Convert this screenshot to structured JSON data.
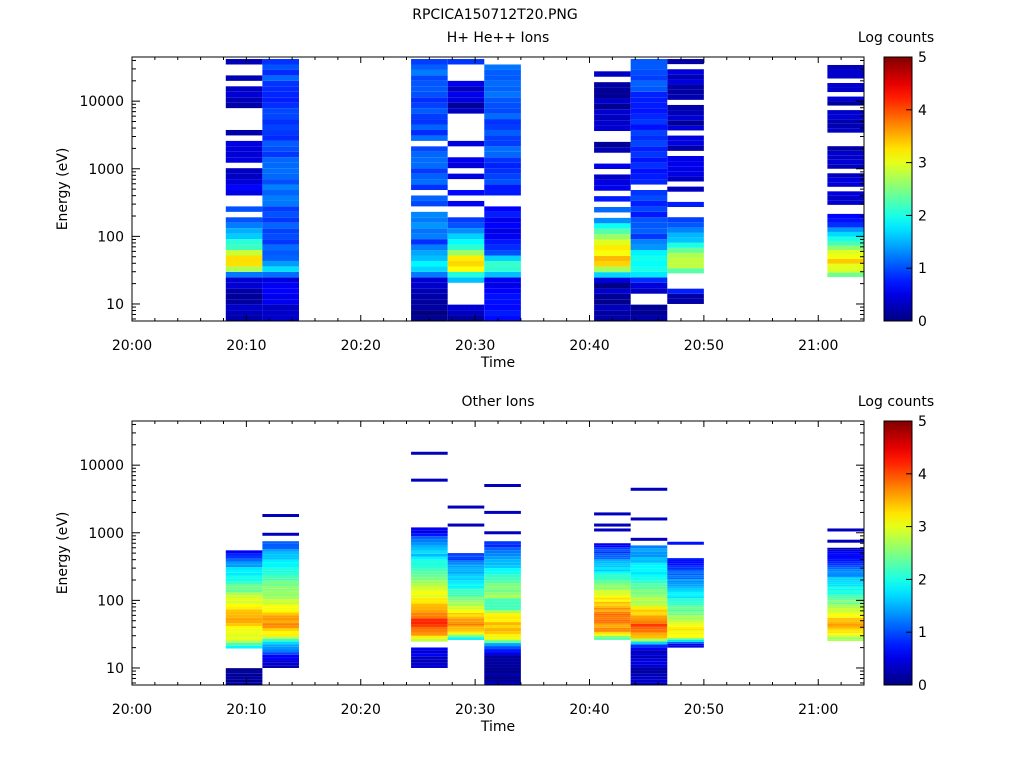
{
  "figure_title": "RPCICA150712T20.PNG",
  "chart_data": [
    {
      "type": "heatmap",
      "title": "H+ He++ Ions",
      "xlabel": "Time",
      "ylabel": "Energy (eV)",
      "x_ticks": [
        "20:00",
        "20:10",
        "20:20",
        "20:30",
        "20:40",
        "20:50",
        "21:00"
      ],
      "x_range_minutes": [
        0,
        64
      ],
      "y_scale": "log",
      "y_ticks": [
        "10",
        "100",
        "1000",
        "10000"
      ],
      "y_range": [
        5.6,
        45000
      ],
      "colorbar": {
        "label": "Log counts",
        "range": [
          0,
          5
        ],
        "ticks": [
          "0",
          "1",
          "2",
          "3",
          "4",
          "5"
        ]
      },
      "grid": false,
      "columns": [
        {
          "start_min": 8.2,
          "end_min": 11.4,
          "e_top": 42000,
          "e_bottom": 5.6,
          "profile": [
            [
              8.5,
              0.3
            ],
            [
              22,
              0.25
            ],
            [
              28,
              1.5
            ],
            [
              34,
              3.1
            ],
            [
              45,
              3.3
            ],
            [
              56,
              3.0
            ],
            [
              70,
              2.2
            ],
            [
              100,
              1.6
            ],
            [
              150,
              1.2
            ],
            [
              300,
              0.8
            ],
            [
              1000,
              0.4
            ],
            [
              10000,
              0.25
            ],
            [
              42000,
              0.2
            ]
          ],
          "gap_density": 0.3
        },
        {
          "start_min": 11.4,
          "end_min": 14.6,
          "e_top": 42000,
          "e_bottom": 5.6,
          "profile": [
            [
              8.5,
              0.45
            ],
            [
              24,
              0.5
            ],
            [
              30,
              1.7
            ],
            [
              40,
              1.3
            ],
            [
              60,
              1.2
            ],
            [
              100,
              0.9
            ],
            [
              400,
              1.1
            ],
            [
              2000,
              1.0
            ],
            [
              10000,
              0.9
            ],
            [
              42000,
              1.0
            ]
          ],
          "gap_density": 0.0
        },
        {
          "start_min": 24.4,
          "end_min": 27.6,
          "e_top": 42000,
          "e_bottom": 5.6,
          "profile": [
            [
              8.5,
              0.15
            ],
            [
              22,
              0.4
            ],
            [
              28,
              1.2
            ],
            [
              35,
              1.9
            ],
            [
              50,
              1.5
            ],
            [
              80,
              0.9
            ],
            [
              150,
              1.4
            ],
            [
              400,
              1.0
            ],
            [
              2000,
              1.0
            ],
            [
              10000,
              1.0
            ],
            [
              42000,
              1.1
            ]
          ],
          "gap_density": 0.05
        },
        {
          "start_min": 27.6,
          "end_min": 30.8,
          "e_top": 42000,
          "e_bottom": 5.6,
          "profile": [
            [
              8.5,
              0.2
            ],
            [
              26,
              1.6
            ],
            [
              34,
              3.2
            ],
            [
              45,
              3.5
            ],
            [
              60,
              2.6
            ],
            [
              90,
              1.6
            ],
            [
              200,
              0.8
            ],
            [
              1000,
              0.4
            ],
            [
              10000,
              0.3
            ],
            [
              42000,
              0.8
            ]
          ],
          "gap_density": 0.28,
          "empty": [
            [
              9,
              19
            ]
          ]
        },
        {
          "start_min": 30.8,
          "end_min": 34.0,
          "e_top": 42000,
          "e_bottom": 5.6,
          "profile": [
            [
              8.5,
              0.7
            ],
            [
              22,
              0.6
            ],
            [
              28,
              1.7
            ],
            [
              35,
              2.2
            ],
            [
              45,
              1.9
            ],
            [
              60,
              0.9
            ],
            [
              100,
              0.6
            ],
            [
              400,
              0.8
            ],
            [
              2000,
              1.0
            ],
            [
              10000,
              1.0
            ],
            [
              42000,
              1.2
            ]
          ],
          "gap_density": 0.12
        },
        {
          "start_min": 40.4,
          "end_min": 43.6,
          "e_top": 40000,
          "e_bottom": 5.6,
          "profile": [
            [
              8.5,
              0.2
            ],
            [
              22,
              0.2
            ],
            [
              28,
              1.8
            ],
            [
              34,
              3.1
            ],
            [
              45,
              3.4
            ],
            [
              60,
              3.2
            ],
            [
              90,
              2.8
            ],
            [
              120,
              2.1
            ],
            [
              200,
              1.2
            ],
            [
              500,
              0.5
            ],
            [
              2000,
              0.3
            ],
            [
              40000,
              0.2
            ]
          ],
          "gap_density": 0.32
        },
        {
          "start_min": 43.6,
          "end_min": 46.8,
          "e_top": 42000,
          "e_bottom": 5.6,
          "profile": [
            [
              8.5,
              0.2
            ],
            [
              20,
              0.3
            ],
            [
              28,
              1.8
            ],
            [
              40,
              2.0
            ],
            [
              60,
              1.7
            ],
            [
              90,
              1.0
            ],
            [
              200,
              0.9
            ],
            [
              1000,
              0.8
            ],
            [
              10000,
              0.8
            ],
            [
              42000,
              1.2
            ]
          ],
          "gap_density": 0.05,
          "empty": [
            [
              9,
              15
            ]
          ]
        },
        {
          "start_min": 46.8,
          "end_min": 50.0,
          "e_top": 42000,
          "e_bottom": 10,
          "profile": [
            [
              12,
              0.2
            ],
            [
              26,
              1.8
            ],
            [
              34,
              2.7
            ],
            [
              45,
              3.0
            ],
            [
              60,
              2.4
            ],
            [
              90,
              1.6
            ],
            [
              150,
              1.0
            ],
            [
              400,
              0.5
            ],
            [
              2000,
              0.3
            ],
            [
              42000,
              0.3
            ]
          ],
          "gap_density": 0.3,
          "empty": [
            [
              15.5,
              27
            ]
          ]
        },
        {
          "start_min": 60.8,
          "end_min": 64.0,
          "e_top": 40000,
          "e_bottom": 25,
          "profile": [
            [
              28,
              2.4
            ],
            [
              34,
              3.1
            ],
            [
              45,
              3.3
            ],
            [
              60,
              2.9
            ],
            [
              90,
              1.9
            ],
            [
              130,
              1.2
            ],
            [
              200,
              0.5
            ],
            [
              1000,
              0.3
            ],
            [
              40000,
              0.3
            ]
          ],
          "gap_density": 0.3
        }
      ]
    },
    {
      "type": "heatmap",
      "title": "Other Ions",
      "xlabel": "Time",
      "ylabel": "Energy (eV)",
      "x_ticks": [
        "20:00",
        "20:10",
        "20:20",
        "20:30",
        "20:40",
        "20:50",
        "21:00"
      ],
      "x_range_minutes": [
        0,
        64
      ],
      "y_scale": "log",
      "y_ticks": [
        "10",
        "100",
        "1000",
        "10000"
      ],
      "y_range": [
        5.6,
        45000
      ],
      "colorbar": {
        "label": "Log counts",
        "range": [
          0,
          5
        ],
        "ticks": [
          "0",
          "1",
          "2",
          "3",
          "4",
          "5"
        ]
      },
      "grid": false,
      "columns": [
        {
          "start_min": 8.2,
          "end_min": 11.4,
          "e_top": 550,
          "e_bottom": 5.6,
          "profile": [
            [
              7,
              0.2
            ],
            [
              10,
              0.2
            ],
            [
              20,
              1.6
            ],
            [
              26,
              2.9
            ],
            [
              35,
              3.1
            ],
            [
              45,
              3.5
            ],
            [
              60,
              3.4
            ],
            [
              100,
              2.9
            ],
            [
              150,
              2.4
            ],
            [
              250,
              1.8
            ],
            [
              400,
              1.2
            ],
            [
              550,
              0.6
            ]
          ],
          "gap_density": 0.0,
          "empty": [
            [
              10,
              20
            ]
          ]
        },
        {
          "start_min": 11.4,
          "end_min": 14.6,
          "e_top": 750,
          "e_bottom": 10,
          "profile": [
            [
              12,
              0.2
            ],
            [
              24,
              1.8
            ],
            [
              30,
              3.0
            ],
            [
              45,
              3.7
            ],
            [
              60,
              3.4
            ],
            [
              90,
              2.9
            ],
            [
              200,
              2.4
            ],
            [
              400,
              1.6
            ],
            [
              750,
              1.0
            ]
          ],
          "gap_density": 0.0,
          "lines": [
            [
              950,
              0.3
            ],
            [
              1800,
              0.3
            ]
          ]
        },
        {
          "start_min": 24.4,
          "end_min": 27.6,
          "e_top": 1200,
          "e_bottom": 10,
          "profile": [
            [
              12,
              0.3
            ],
            [
              20,
              0.6
            ],
            [
              26,
              2.9
            ],
            [
              35,
              3.8
            ],
            [
              50,
              4.2
            ],
            [
              70,
              3.5
            ],
            [
              100,
              3.1
            ],
            [
              150,
              2.9
            ],
            [
              250,
              2.4
            ],
            [
              500,
              1.6
            ],
            [
              900,
              0.9
            ],
            [
              1200,
              0.3
            ]
          ],
          "gap_density": 0.0,
          "empty": [
            [
              20,
              24
            ]
          ],
          "lines": [
            [
              6000,
              0.3
            ],
            [
              15000,
              0.3
            ]
          ]
        },
        {
          "start_min": 27.6,
          "end_min": 30.8,
          "e_top": 500,
          "e_bottom": 26,
          "profile": [
            [
              27,
              1.7
            ],
            [
              34,
              3.3
            ],
            [
              45,
              3.7
            ],
            [
              60,
              3.4
            ],
            [
              90,
              2.7
            ],
            [
              150,
              2.0
            ],
            [
              300,
              1.4
            ],
            [
              500,
              0.8
            ]
          ],
          "gap_density": 0.0,
          "lines": [
            [
              1300,
              0.3
            ],
            [
              2400,
              0.3
            ]
          ]
        },
        {
          "start_min": 30.8,
          "end_min": 34.0,
          "e_top": 750,
          "e_bottom": 5.6,
          "profile": [
            [
              8,
              0.2
            ],
            [
              15,
              0.3
            ],
            [
              22,
              1.4
            ],
            [
              28,
              3.2
            ],
            [
              40,
              3.5
            ],
            [
              60,
              3.2
            ],
            [
              80,
              2.1
            ],
            [
              120,
              2.6
            ],
            [
              250,
              2.0
            ],
            [
              500,
              1.2
            ],
            [
              750,
              0.8
            ]
          ],
          "gap_density": 0.0,
          "lines": [
            [
              1000,
              0.3
            ],
            [
              2000,
              0.3
            ],
            [
              5000,
              0.3
            ]
          ]
        },
        {
          "start_min": 40.4,
          "end_min": 43.6,
          "e_top": 700,
          "e_bottom": 26,
          "profile": [
            [
              27,
              2.2
            ],
            [
              34,
              3.6
            ],
            [
              50,
              3.8
            ],
            [
              80,
              3.6
            ],
            [
              120,
              3.0
            ],
            [
              200,
              2.2
            ],
            [
              400,
              1.3
            ],
            [
              700,
              0.6
            ]
          ],
          "gap_density": 0.0,
          "lines": [
            [
              1100,
              0.3
            ],
            [
              1300,
              0.3
            ],
            [
              1900,
              0.3
            ]
          ]
        },
        {
          "start_min": 43.6,
          "end_min": 46.8,
          "e_top": 650,
          "e_bottom": 5.6,
          "profile": [
            [
              8,
              0.2
            ],
            [
              20,
              0.5
            ],
            [
              28,
              3.2
            ],
            [
              40,
              4.1
            ],
            [
              55,
              3.6
            ],
            [
              80,
              3.0
            ],
            [
              150,
              2.3
            ],
            [
              300,
              1.8
            ],
            [
              650,
              1.2
            ]
          ],
          "gap_density": 0.0,
          "lines": [
            [
              800,
              0.3
            ],
            [
              1600,
              0.3
            ],
            [
              4400,
              0.3
            ]
          ]
        },
        {
          "start_min": 46.8,
          "end_min": 50.0,
          "e_top": 450,
          "e_bottom": 20,
          "profile": [
            [
              22,
              0.4
            ],
            [
              28,
              3.0
            ],
            [
              40,
              3.2
            ],
            [
              60,
              2.6
            ],
            [
              100,
              2.0
            ],
            [
              200,
              1.3
            ],
            [
              450,
              0.5
            ]
          ],
          "gap_density": 0.15,
          "lines": [
            [
              700,
              0.7
            ]
          ]
        },
        {
          "start_min": 60.8,
          "end_min": 64.0,
          "e_top": 600,
          "e_bottom": 25,
          "profile": [
            [
              28,
              2.6
            ],
            [
              35,
              3.3
            ],
            [
              45,
              3.6
            ],
            [
              60,
              3.1
            ],
            [
              100,
              2.4
            ],
            [
              200,
              1.6
            ],
            [
              400,
              0.8
            ],
            [
              600,
              0.4
            ]
          ],
          "gap_density": 0.0,
          "lines": [
            [
              750,
              0.3
            ],
            [
              1100,
              0.3
            ]
          ]
        }
      ]
    }
  ]
}
